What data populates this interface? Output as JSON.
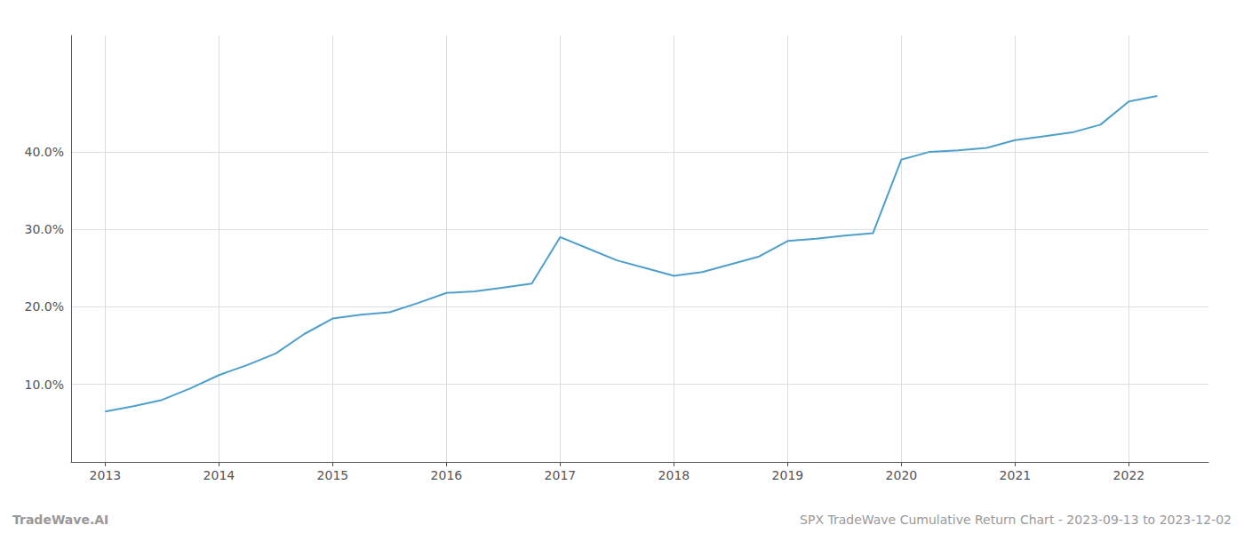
{
  "chart_data": {
    "type": "line",
    "title": "SPX TradeWave Cumulative Return Chart - 2023-09-13 to 2023-12-02",
    "annotations": [
      "TradeWave.AI"
    ],
    "x": [
      2013.0,
      2013.25,
      2013.5,
      2013.75,
      2014.0,
      2014.25,
      2014.5,
      2014.75,
      2015.0,
      2015.25,
      2015.5,
      2015.75,
      2016.0,
      2016.25,
      2016.5,
      2016.75,
      2017.0,
      2017.25,
      2017.5,
      2017.75,
      2018.0,
      2018.25,
      2018.5,
      2018.75,
      2019.0,
      2019.25,
      2019.5,
      2019.75,
      2020.0,
      2020.25,
      2020.5,
      2020.75,
      2021.0,
      2021.25,
      2021.5,
      2021.75,
      2022.0,
      2022.25
    ],
    "values": [
      6.5,
      7.2,
      8.0,
      9.5,
      11.2,
      12.5,
      14.0,
      16.5,
      18.5,
      19.0,
      19.3,
      20.5,
      21.8,
      22.0,
      22.5,
      23.0,
      29.0,
      27.5,
      26.0,
      25.0,
      24.0,
      24.5,
      25.5,
      26.5,
      28.5,
      28.8,
      29.2,
      29.5,
      39.0,
      40.0,
      40.2,
      40.5,
      41.5,
      42.0,
      42.5,
      43.5,
      46.5,
      47.2
    ],
    "color": "#4d9fcc",
    "xlim": [
      2012.7,
      2022.7
    ],
    "ylim": [
      0,
      55
    ],
    "xticks": [
      2013,
      2014,
      2015,
      2016,
      2017,
      2018,
      2019,
      2020,
      2021,
      2022
    ],
    "yticks": [
      {
        "value": 10.0,
        "label": "10.0%"
      },
      {
        "value": 20.0,
        "label": "20.0%"
      },
      {
        "value": 30.0,
        "label": "30.0%"
      },
      {
        "value": 40.0,
        "label": "40.0%"
      }
    ],
    "grid": true
  }
}
